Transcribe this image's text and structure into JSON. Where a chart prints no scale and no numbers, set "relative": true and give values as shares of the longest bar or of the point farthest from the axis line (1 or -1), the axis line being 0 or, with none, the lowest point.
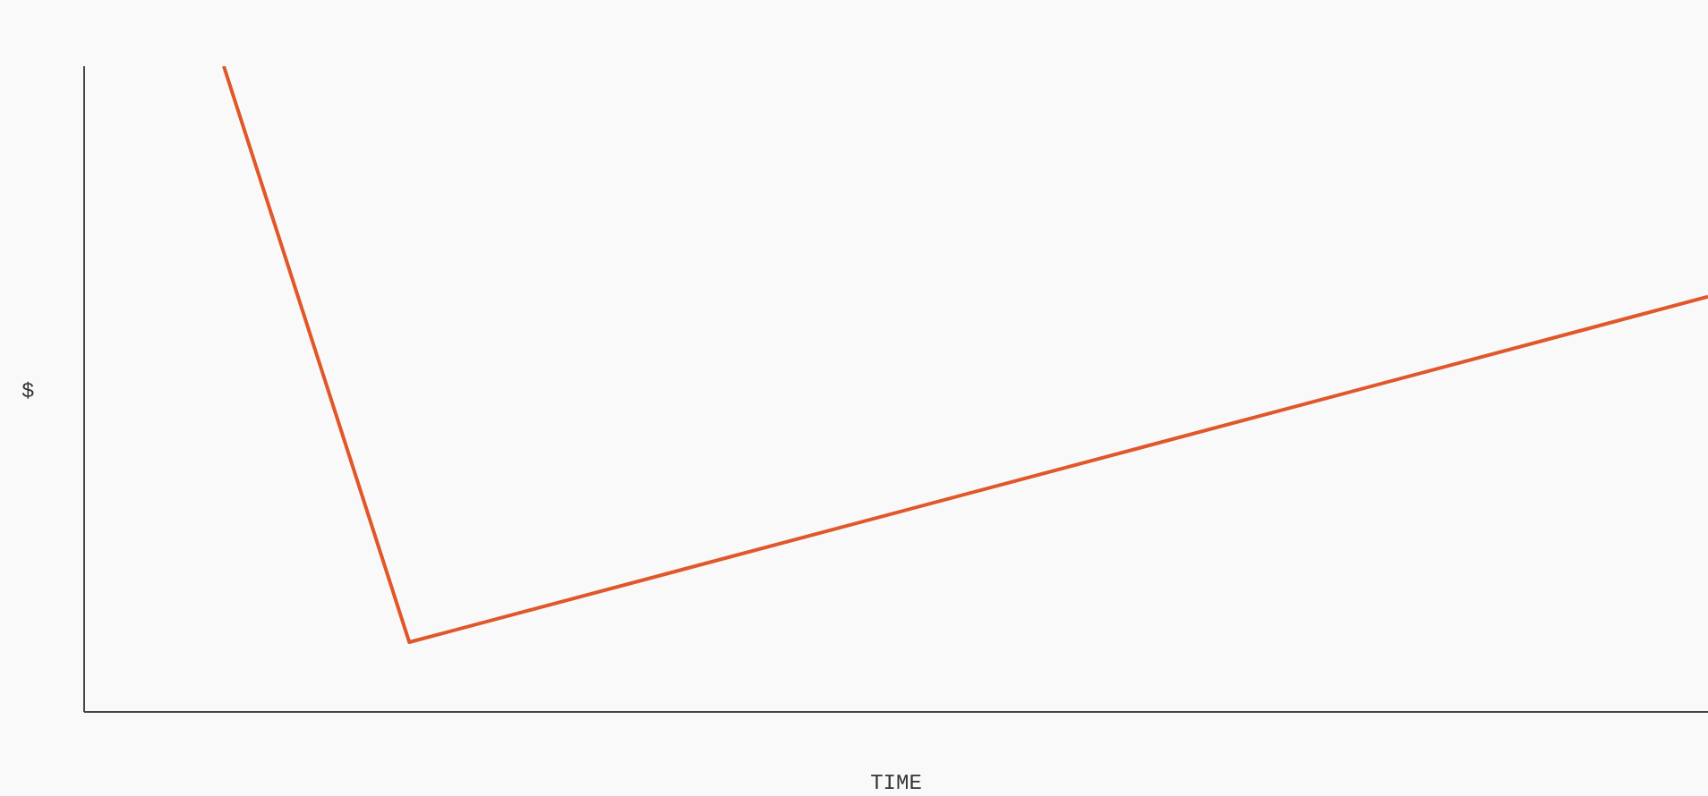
{
  "chart_data": {
    "type": "line",
    "relative": true,
    "xlabel": "TIME",
    "ylabel": "$",
    "categories": [
      null,
      null,
      null,
      null,
      null,
      null,
      null,
      null,
      null
    ],
    "series": [
      {
        "color": "#e0572a",
        "values": [
          1,
          0.108,
          null,
          null,
          null,
          null,
          null,
          null,
          0.643
        ]
      }
    ],
    "grid": false,
    "legend": false,
    "marker": "none",
    "line_style": "solid",
    "tick_labels": false
  }
}
